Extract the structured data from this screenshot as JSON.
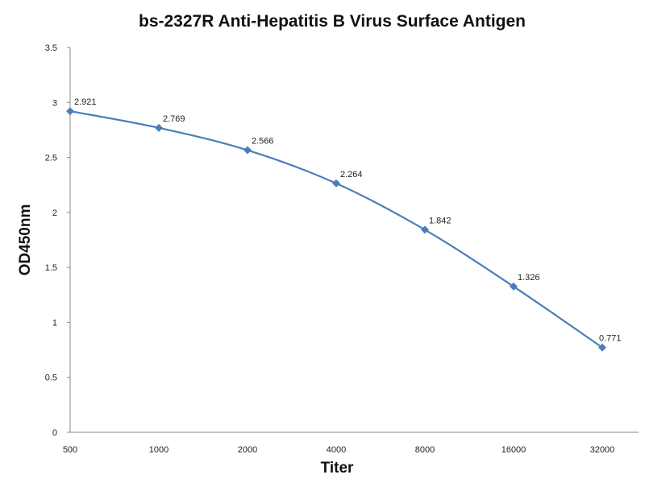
{
  "chart_data": {
    "type": "line",
    "title": "bs-2327R Anti-Hepatitis B Virus Surface Antigen",
    "xlabel": "Titer",
    "ylabel": "OD450nm",
    "categories": [
      "500",
      "1000",
      "2000",
      "4000",
      "8000",
      "16000",
      "32000"
    ],
    "series": [
      {
        "name": "OD450nm",
        "values": [
          2.921,
          2.769,
          2.566,
          2.264,
          1.842,
          1.326,
          0.771
        ],
        "data_labels": [
          "2.921",
          "2.769",
          "2.566",
          "2.264",
          "1.842",
          "1.326",
          "0.771"
        ]
      }
    ],
    "ylim": [
      0,
      3.5
    ],
    "yticks": [
      "0",
      "0.5",
      "1",
      "1.5",
      "2",
      "2.5",
      "3",
      "3.5"
    ],
    "grid": false,
    "legend": "none",
    "colors": {
      "line": "#4a7ebb",
      "axis": "#888888"
    }
  }
}
